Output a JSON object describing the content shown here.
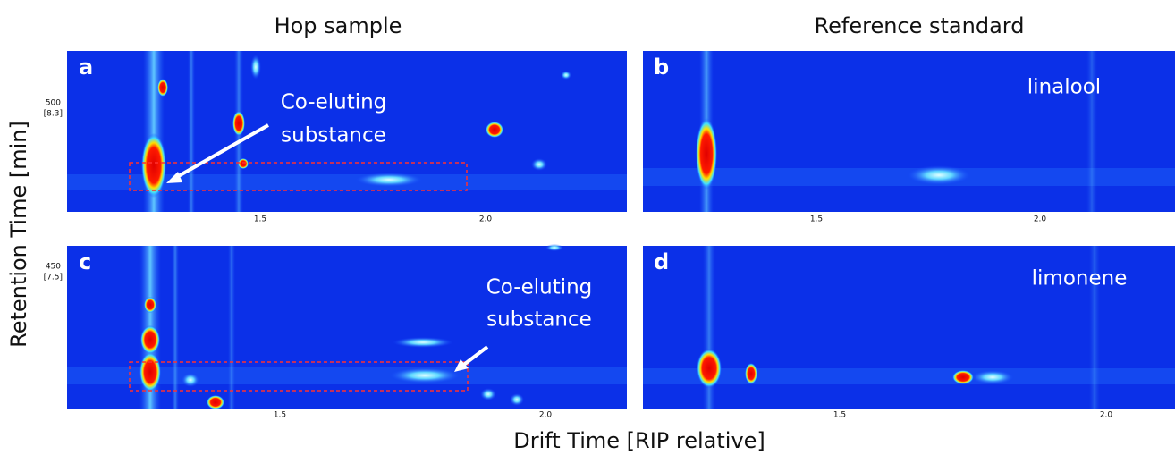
{
  "column_titles": [
    "Hop sample",
    "Reference standard"
  ],
  "panels": [
    {
      "letter": "a",
      "x_ticks": [
        "1.5",
        "2.0"
      ],
      "y_ticks": [
        "500",
        "[8.3]"
      ],
      "annotation": [
        "Co-eluting",
        "substance"
      ]
    },
    {
      "letter": "b",
      "x_ticks": [
        "1.5",
        "2.0"
      ],
      "annotation": [
        "linalool"
      ]
    },
    {
      "letter": "c",
      "x_ticks": [
        "1.5",
        "2.0"
      ],
      "y_ticks": [
        "450",
        "[7.5]"
      ],
      "annotation": [
        "Co-eluting",
        "substance"
      ]
    },
    {
      "letter": "d",
      "x_ticks": [
        "1.5",
        "2.0"
      ],
      "annotation": [
        "limonene"
      ]
    }
  ],
  "y_axis_label": "Retention Time [min]",
  "x_axis_label": "Drift Time [RIP relative]"
}
